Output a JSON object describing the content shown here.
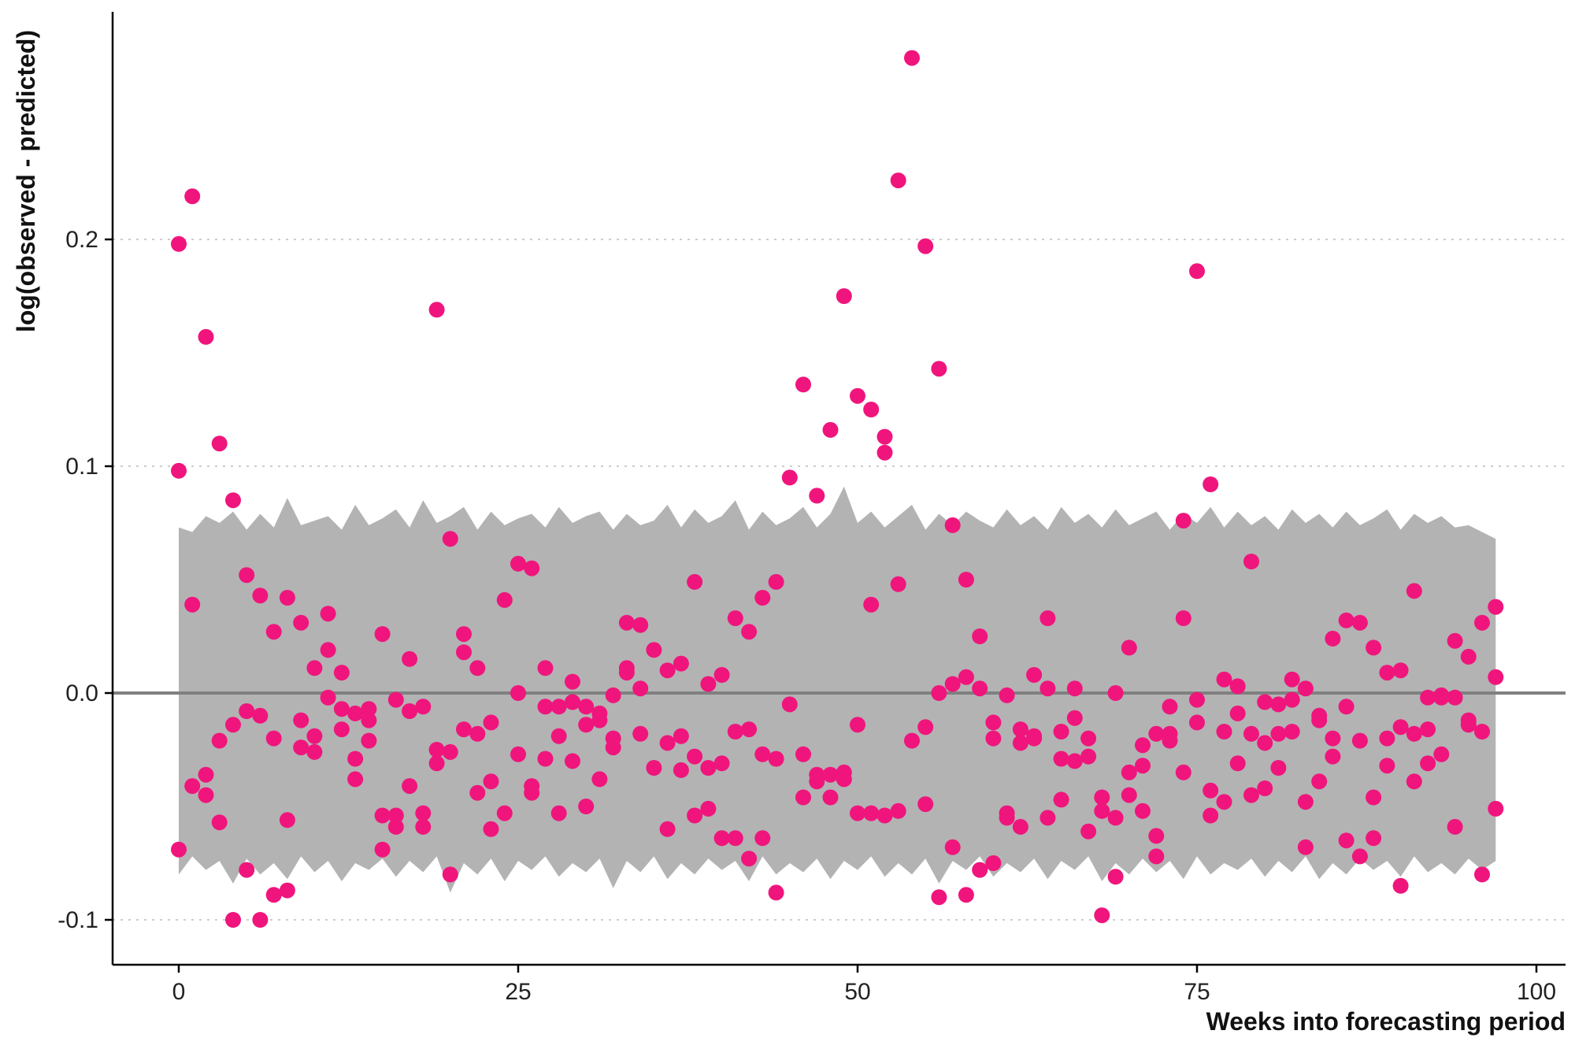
{
  "chart_data": {
    "type": "scatter",
    "title": "",
    "xlabel": "Weeks into forecasting period",
    "ylabel": "log(observed - predicted)",
    "xlim": [
      -5,
      102
    ],
    "ylim": [
      -0.12,
      0.3
    ],
    "x_ticks": [
      0,
      25,
      50,
      75,
      100
    ],
    "x_tick_labels": [
      "0",
      "25",
      "50",
      "75",
      "100"
    ],
    "y_ticks": [
      -0.1,
      0.0,
      0.1,
      0.2
    ],
    "y_tick_labels": [
      "-0.1",
      "0.0",
      "0.1",
      "0.2"
    ],
    "grid": "horizontal dotted at y ticks",
    "reference_line": 0,
    "colors": {
      "points": "#f0157d",
      "band": "#b3b3b3",
      "reference_line": "#808080",
      "grid": "#cccccc",
      "axis": "#000000"
    },
    "band": {
      "x_range": [
        0,
        97
      ],
      "upper": [
        0.073,
        0.071,
        0.078,
        0.075,
        0.08,
        0.072,
        0.079,
        0.073,
        0.086,
        0.074,
        0.076,
        0.078,
        0.072,
        0.083,
        0.074,
        0.077,
        0.081,
        0.073,
        0.085,
        0.075,
        0.078,
        0.082,
        0.072,
        0.08,
        0.074,
        0.077,
        0.079,
        0.073,
        0.082,
        0.075,
        0.078,
        0.08,
        0.072,
        0.079,
        0.074,
        0.076,
        0.083,
        0.073,
        0.081,
        0.075,
        0.078,
        0.085,
        0.072,
        0.08,
        0.074,
        0.077,
        0.082,
        0.073,
        0.079,
        0.091,
        0.075,
        0.08,
        0.073,
        0.078,
        0.083,
        0.072,
        0.079,
        0.074,
        0.08,
        0.076,
        0.073,
        0.081,
        0.074,
        0.078,
        0.072,
        0.082,
        0.075,
        0.079,
        0.073,
        0.081,
        0.074,
        0.077,
        0.08,
        0.072,
        0.079,
        0.075,
        0.082,
        0.073,
        0.08,
        0.074,
        0.078,
        0.072,
        0.081,
        0.075,
        0.079,
        0.073,
        0.08,
        0.074,
        0.077,
        0.081,
        0.072,
        0.079,
        0.075,
        0.078,
        0.073,
        0.074,
        0.071,
        0.068
      ],
      "lower": [
        -0.08,
        -0.072,
        -0.078,
        -0.074,
        -0.084,
        -0.073,
        -0.08,
        -0.075,
        -0.082,
        -0.072,
        -0.079,
        -0.074,
        -0.083,
        -0.075,
        -0.078,
        -0.073,
        -0.081,
        -0.074,
        -0.079,
        -0.072,
        -0.088,
        -0.075,
        -0.08,
        -0.073,
        -0.083,
        -0.074,
        -0.078,
        -0.072,
        -0.081,
        -0.075,
        -0.079,
        -0.073,
        -0.086,
        -0.074,
        -0.079,
        -0.072,
        -0.082,
        -0.075,
        -0.08,
        -0.073,
        -0.078,
        -0.074,
        -0.083,
        -0.072,
        -0.08,
        -0.075,
        -0.079,
        -0.073,
        -0.082,
        -0.074,
        -0.078,
        -0.072,
        -0.081,
        -0.075,
        -0.08,
        -0.073,
        -0.084,
        -0.074,
        -0.078,
        -0.072,
        -0.081,
        -0.075,
        -0.079,
        -0.073,
        -0.082,
        -0.074,
        -0.078,
        -0.072,
        -0.083,
        -0.075,
        -0.08,
        -0.073,
        -0.079,
        -0.074,
        -0.082,
        -0.072,
        -0.08,
        -0.075,
        -0.078,
        -0.073,
        -0.081,
        -0.074,
        -0.079,
        -0.072,
        -0.082,
        -0.075,
        -0.08,
        -0.073,
        -0.078,
        -0.074,
        -0.081,
        -0.072,
        -0.079,
        -0.075,
        -0.08,
        -0.073,
        -0.078,
        -0.074
      ]
    },
    "series": [
      {
        "x": [
          0,
          0,
          0,
          1,
          1,
          1,
          2,
          2,
          2,
          3,
          3,
          3,
          4,
          4,
          4,
          5,
          5,
          5,
          6,
          6,
          6,
          7,
          7,
          7,
          8,
          8,
          8,
          9,
          9,
          9,
          10,
          10,
          10,
          11,
          11,
          11,
          12,
          12,
          12,
          13,
          13,
          13,
          14,
          14,
          14,
          15,
          15,
          15,
          16,
          16,
          16,
          17,
          17,
          17,
          18,
          18,
          18,
          19,
          19,
          19,
          20,
          20,
          20,
          21,
          21,
          21,
          22,
          22,
          22,
          23,
          23,
          23,
          24,
          24,
          25,
          25,
          25,
          26,
          26,
          26,
          27,
          27,
          27,
          28,
          28,
          28,
          29,
          29,
          29,
          30,
          30,
          30,
          31,
          31,
          31,
          32,
          32,
          32,
          33,
          33,
          33,
          34,
          34,
          34,
          35,
          35,
          36,
          36,
          36,
          37,
          37,
          37,
          38,
          38,
          38,
          39,
          39,
          39,
          40,
          40,
          40,
          41,
          41,
          41,
          42,
          42,
          42,
          43,
          43,
          43,
          44,
          44,
          44,
          45,
          45,
          46,
          46,
          46,
          47,
          47,
          47,
          48,
          48,
          48,
          49,
          49,
          49,
          50,
          50,
          50,
          51,
          51,
          51,
          52,
          52,
          52,
          53,
          53,
          53,
          54,
          54,
          55,
          55,
          55,
          56,
          56,
          56,
          57,
          57,
          57,
          58,
          58,
          58,
          59,
          59,
          59,
          60,
          60,
          60,
          61,
          61,
          61,
          62,
          62,
          62,
          63,
          63,
          63,
          64,
          64,
          64,
          65,
          65,
          65,
          66,
          66,
          66,
          67,
          67,
          67,
          68,
          68,
          68,
          69,
          69,
          69,
          70,
          70,
          70,
          71,
          71,
          71,
          72,
          72,
          72,
          73,
          73,
          73,
          74,
          74,
          74,
          75,
          75,
          75,
          76,
          76,
          76,
          77,
          77,
          77,
          78,
          78,
          78,
          79,
          79,
          79,
          80,
          80,
          80,
          81,
          81,
          81,
          82,
          82,
          82,
          83,
          83,
          83,
          84,
          84,
          84,
          85,
          85,
          85,
          86,
          86,
          86,
          87,
          87,
          87,
          88,
          88,
          88,
          89,
          89,
          89,
          90,
          90,
          90,
          91,
          91,
          91,
          92,
          92,
          92,
          93,
          93,
          93,
          94,
          94,
          94,
          95,
          95,
          95,
          96,
          96,
          96,
          97,
          97,
          97
        ],
        "y": [
          0.198,
          0.098,
          -0.069,
          0.219,
          0.039,
          -0.041,
          0.157,
          -0.036,
          -0.045,
          0.11,
          -0.021,
          -0.057,
          0.085,
          -0.014,
          -0.1,
          0.052,
          -0.008,
          -0.078,
          0.043,
          -0.01,
          -0.1,
          0.027,
          -0.02,
          -0.089,
          0.042,
          -0.056,
          -0.087,
          0.031,
          -0.012,
          -0.024,
          0.011,
          -0.019,
          -0.026,
          0.035,
          0.019,
          -0.002,
          0.009,
          -0.007,
          -0.016,
          -0.009,
          -0.029,
          -0.038,
          -0.007,
          -0.012,
          -0.021,
          0.026,
          -0.054,
          -0.069,
          -0.003,
          -0.054,
          -0.059,
          0.015,
          -0.008,
          -0.041,
          -0.006,
          -0.053,
          -0.059,
          0.169,
          -0.025,
          -0.031,
          0.068,
          -0.026,
          -0.08,
          0.026,
          0.018,
          -0.016,
          0.011,
          -0.018,
          -0.044,
          -0.013,
          -0.039,
          -0.06,
          0.041,
          -0.053,
          0.057,
          0.0,
          -0.027,
          0.055,
          -0.041,
          -0.044,
          0.011,
          -0.006,
          -0.029,
          -0.006,
          -0.019,
          -0.053,
          0.005,
          -0.004,
          -0.03,
          -0.006,
          -0.014,
          -0.05,
          -0.009,
          -0.012,
          -0.038,
          -0.001,
          -0.02,
          -0.024,
          0.031,
          0.011,
          0.009,
          0.03,
          0.002,
          -0.018,
          0.019,
          -0.033,
          0.01,
          -0.022,
          -0.06,
          0.013,
          -0.019,
          -0.034,
          0.049,
          -0.028,
          -0.054,
          0.004,
          -0.033,
          -0.051,
          0.008,
          -0.031,
          -0.064,
          0.033,
          -0.017,
          -0.064,
          0.027,
          -0.016,
          -0.073,
          0.042,
          -0.027,
          -0.064,
          0.049,
          -0.029,
          -0.088,
          0.095,
          -0.005,
          0.136,
          -0.027,
          -0.046,
          0.087,
          -0.036,
          -0.039,
          0.116,
          -0.036,
          -0.046,
          0.175,
          -0.035,
          -0.038,
          0.131,
          -0.014,
          -0.053,
          0.125,
          0.039,
          -0.053,
          0.113,
          0.106,
          -0.054,
          0.226,
          0.048,
          -0.052,
          0.28,
          -0.021,
          0.197,
          -0.015,
          -0.049,
          0.143,
          0.0,
          -0.09,
          0.074,
          0.004,
          -0.068,
          0.05,
          0.007,
          -0.089,
          0.025,
          0.002,
          -0.078,
          -0.013,
          -0.02,
          -0.075,
          -0.001,
          -0.053,
          -0.055,
          -0.016,
          -0.022,
          -0.059,
          0.008,
          -0.019,
          -0.02,
          0.033,
          0.002,
          -0.055,
          -0.017,
          -0.029,
          -0.047,
          0.002,
          -0.011,
          -0.03,
          -0.02,
          -0.028,
          -0.061,
          -0.046,
          -0.052,
          -0.098,
          0.0,
          -0.055,
          -0.081,
          0.02,
          -0.035,
          -0.045,
          -0.023,
          -0.032,
          -0.052,
          -0.018,
          -0.063,
          -0.072,
          -0.006,
          -0.018,
          -0.021,
          0.033,
          0.076,
          -0.035,
          0.186,
          -0.003,
          -0.013,
          0.092,
          -0.043,
          -0.054,
          0.006,
          -0.017,
          -0.048,
          0.003,
          -0.009,
          -0.031,
          0.058,
          -0.018,
          -0.045,
          -0.004,
          -0.022,
          -0.042,
          -0.005,
          -0.018,
          -0.033,
          0.006,
          -0.003,
          -0.017,
          0.002,
          -0.048,
          -0.068,
          -0.01,
          -0.012,
          -0.039,
          0.024,
          -0.02,
          -0.028,
          0.032,
          -0.006,
          -0.065,
          0.031,
          -0.021,
          -0.072,
          0.02,
          -0.046,
          -0.064,
          0.009,
          -0.02,
          -0.032,
          0.01,
          -0.015,
          -0.085,
          0.045,
          -0.018,
          -0.039,
          -0.002,
          -0.016,
          -0.031,
          -0.001,
          -0.002,
          -0.027,
          0.023,
          -0.002,
          -0.059,
          0.016,
          -0.012,
          -0.014,
          0.031,
          -0.017,
          -0.08,
          0.038,
          0.007,
          -0.051
        ]
      }
    ]
  }
}
